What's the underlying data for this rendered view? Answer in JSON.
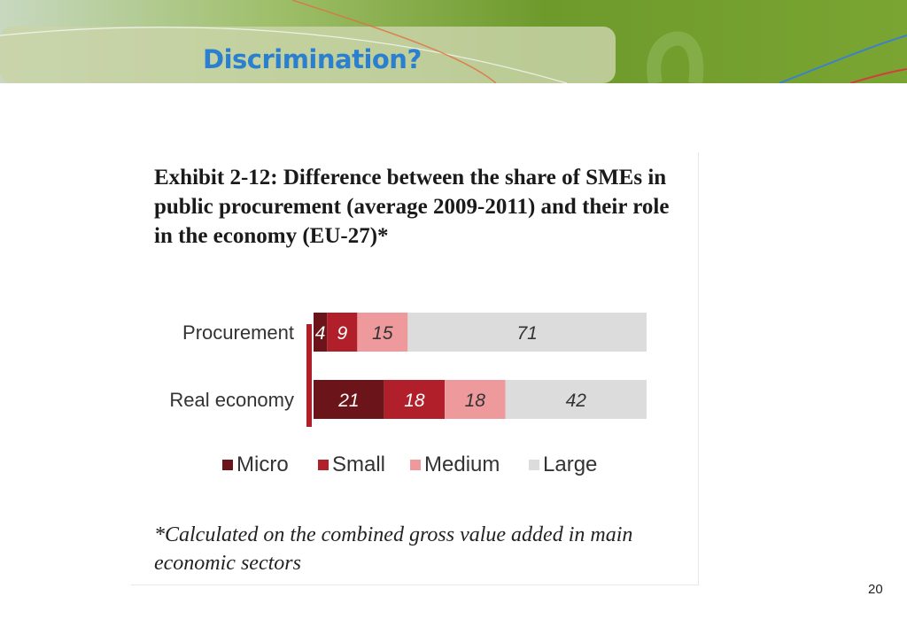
{
  "slide": {
    "title": "Discrimination?",
    "page_number": "20"
  },
  "exhibit": {
    "title": "Exhibit 2-12: Difference between the share of SMEs in public procurement (average 2009-2011) and their role in the economy (EU-27)*",
    "footnote": "*Calculated on the combined gross value added in main economic sectors"
  },
  "colors": {
    "banner_green": "#6e9a2c",
    "title_blue": "#2a7fd0",
    "micro": "#6b1419",
    "small": "#b01f2a",
    "medium": "#ee9a9c",
    "large": "#dcdcdc",
    "axis_bar": "#b01f2a"
  },
  "chart_data": {
    "type": "bar",
    "orientation": "horizontal",
    "stacked": true,
    "categories": [
      "Procurement",
      "Real economy"
    ],
    "series": [
      {
        "name": "Micro",
        "values": [
          4,
          21
        ],
        "color": "#6b1419"
      },
      {
        "name": "Small",
        "values": [
          9,
          18
        ],
        "color": "#b01f2a"
      },
      {
        "name": "Medium",
        "values": [
          15,
          18
        ],
        "color": "#ee9a9c"
      },
      {
        "name": "Large",
        "values": [
          71,
          42
        ],
        "color": "#dcdcdc"
      }
    ],
    "data_labels": true,
    "legend": "bottom",
    "grid": false
  }
}
